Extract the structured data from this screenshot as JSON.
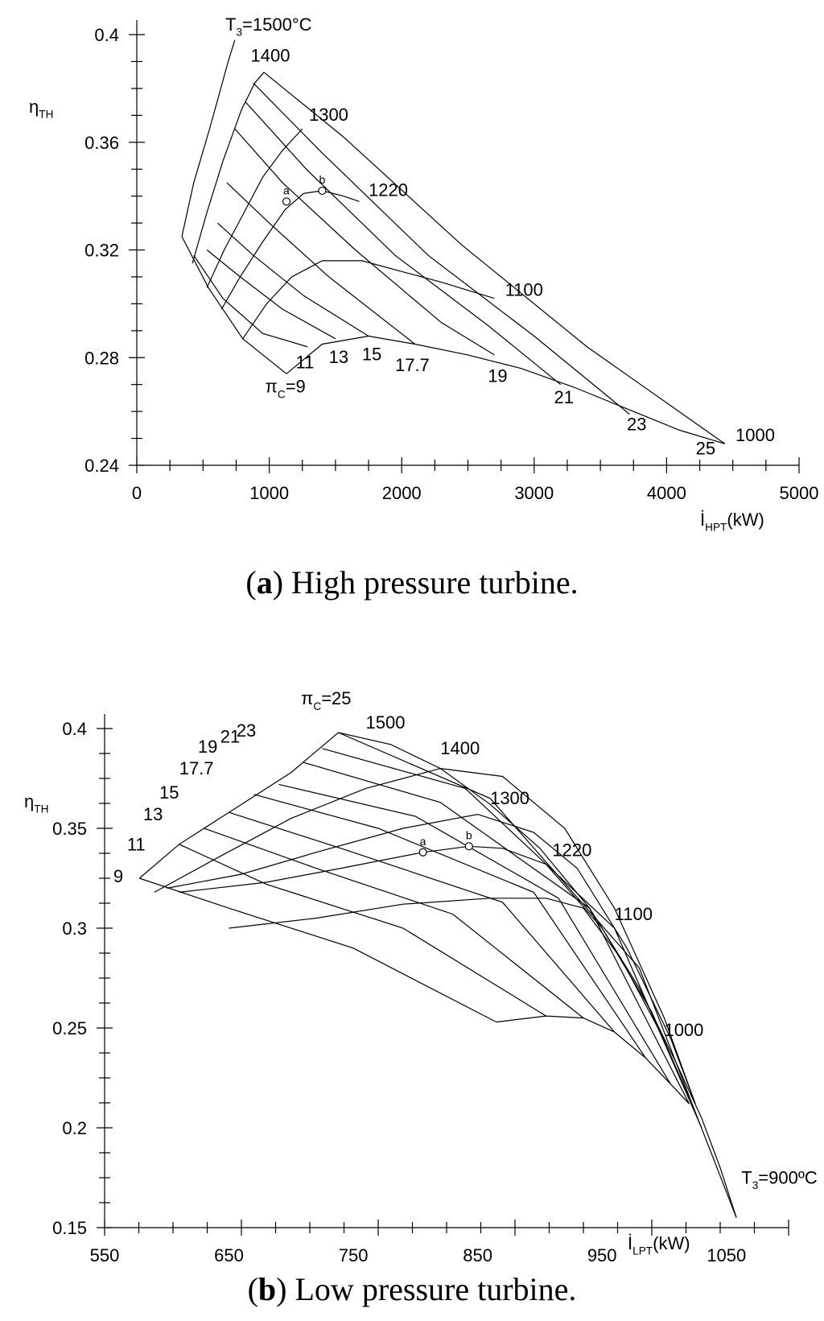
{
  "chart_data": [
    {
      "type": "line",
      "panel": "a",
      "caption_letter": "a",
      "caption_text": "High pressure turbine.",
      "ylabel": "η",
      "ylabel_sub": "TH",
      "xlabel": "İ",
      "xlabel_sub": "HPT",
      "xlabel_unit": "(kW)",
      "xlim": [
        0,
        5000
      ],
      "ylim": [
        0.24,
        0.4
      ],
      "xticks": [
        0,
        1000,
        2000,
        3000,
        4000,
        5000
      ],
      "yticks": [
        "0.24",
        "0.28",
        "0.32",
        "0.36",
        "0.4"
      ],
      "yticks_values": [
        0.24,
        0.28,
        0.32,
        0.36,
        0.4
      ],
      "top_label_prefix": "T",
      "top_label_sub": "3",
      "top_label_suffix": "=1500°C",
      "series_t3": [
        {
          "name": "1500",
          "x": [
            340,
            430,
            550,
            690,
            740
          ],
          "y": [
            0.325,
            0.345,
            0.365,
            0.39,
            0.398
          ]
        },
        {
          "name": "1400",
          "x": [
            420,
            530,
            650,
            790,
            890,
            960
          ],
          "y": [
            0.315,
            0.334,
            0.353,
            0.372,
            0.382,
            0.386
          ]
        },
        {
          "name": "1300",
          "x": [
            530,
            660,
            800,
            950,
            1100,
            1250
          ],
          "y": [
            0.306,
            0.32,
            0.333,
            0.347,
            0.357,
            0.365
          ]
        },
        {
          "name": "1220",
          "x": [
            640,
            780,
            950,
            1120,
            1260,
            1400,
            1560,
            1680
          ],
          "y": [
            0.298,
            0.31,
            0.323,
            0.335,
            0.341,
            0.342,
            0.34,
            0.338
          ]
        },
        {
          "name": "1100",
          "x": [
            800,
            980,
            1170,
            1400,
            1700,
            2000,
            2300,
            2700
          ],
          "y": [
            0.287,
            0.3,
            0.31,
            0.316,
            0.316,
            0.312,
            0.308,
            0.302
          ]
        },
        {
          "name": "1000",
          "x": [
            1130,
            1400,
            1750,
            2100,
            2500,
            2900,
            3300,
            3700,
            4100,
            4440
          ],
          "y": [
            0.274,
            0.285,
            0.288,
            0.285,
            0.281,
            0.276,
            0.269,
            0.261,
            0.253,
            0.248
          ]
        }
      ],
      "series_pi": [
        {
          "name": "9",
          "x": [
            340,
            540,
            800,
            1130
          ],
          "y": [
            0.325,
            0.306,
            0.287,
            0.274
          ]
        },
        {
          "name": "11",
          "x": [
            430,
            650,
            950,
            1290
          ],
          "y": [
            0.318,
            0.302,
            0.289,
            0.284
          ]
        },
        {
          "name": "13",
          "x": [
            530,
            780,
            1100,
            1500
          ],
          "y": [
            0.32,
            0.31,
            0.298,
            0.287
          ]
        },
        {
          "name": "15",
          "x": [
            610,
            880,
            1260,
            1750
          ],
          "y": [
            0.33,
            0.318,
            0.303,
            0.288
          ]
        },
        {
          "name": "17.7",
          "x": [
            680,
            1000,
            1450,
            2100
          ],
          "y": [
            0.345,
            0.33,
            0.31,
            0.285
          ]
        },
        {
          "name": "19",
          "x": [
            740,
            1100,
            1650,
            2300,
            2700
          ],
          "y": [
            0.365,
            0.345,
            0.32,
            0.293,
            0.281
          ]
        },
        {
          "name": "21",
          "x": [
            820,
            1280,
            1950,
            2650,
            3200
          ],
          "y": [
            0.375,
            0.35,
            0.318,
            0.292,
            0.27
          ]
        },
        {
          "name": "23",
          "x": [
            880,
            1400,
            2200,
            3000,
            3720
          ],
          "y": [
            0.382,
            0.356,
            0.318,
            0.288,
            0.259
          ]
        },
        {
          "name": "25",
          "x": [
            960,
            1560,
            2450,
            3400,
            4440
          ],
          "y": [
            0.386,
            0.362,
            0.322,
            0.284,
            0.248
          ]
        }
      ],
      "t3_labels": [
        {
          "text": "1400",
          "x": 860,
          "y": 0.39
        },
        {
          "text": "1300",
          "x": 1300,
          "y": 0.368
        },
        {
          "text": "1220",
          "x": 1750,
          "y": 0.34
        },
        {
          "text": "1100",
          "x": 2780,
          "y": 0.303
        },
        {
          "text": "1000",
          "x": 4520,
          "y": 0.249
        }
      ],
      "pi_labels": [
        {
          "text": "11",
          "x": 1200,
          "y": 0.276
        },
        {
          "text": "13",
          "x": 1450,
          "y": 0.278
        },
        {
          "text": "15",
          "x": 1700,
          "y": 0.279
        },
        {
          "text": "17.7",
          "x": 1950,
          "y": 0.275
        },
        {
          "text": "19",
          "x": 2650,
          "y": 0.271
        },
        {
          "text": "21",
          "x": 3150,
          "y": 0.263
        },
        {
          "text": "23",
          "x": 3700,
          "y": 0.253
        },
        {
          "text": "25",
          "x": 4220,
          "y": 0.244
        }
      ],
      "pi_label": {
        "prefix": "π",
        "sub": "C",
        "suffix": "=9",
        "x": 970,
        "y": 0.267
      },
      "points": [
        {
          "label": "a",
          "x": 1130,
          "y": 0.338
        },
        {
          "label": "b",
          "x": 1400,
          "y": 0.342
        }
      ]
    },
    {
      "type": "line",
      "panel": "b",
      "caption_letter": "b",
      "caption_text": "Low pressure turbine.",
      "ylabel": "η",
      "ylabel_sub": "TH",
      "xlabel": "İ",
      "xlabel_sub": "LPT",
      "xlabel_unit": "(kW)",
      "xlim": [
        550,
        1100
      ],
      "ylim": [
        0.15,
        0.4
      ],
      "xticks": [
        550,
        650,
        750,
        850,
        950,
        1050
      ],
      "yticks": [
        "0.15",
        "0.2",
        "0.25",
        "0.3",
        "0.35",
        "0.4"
      ],
      "yticks_values": [
        0.15,
        0.2,
        0.25,
        0.3,
        0.35,
        0.4
      ],
      "top_label_prefix": "π",
      "top_label_sub": "C",
      "top_label_suffix": "=25",
      "series_t3": [
        {
          "name": "1500",
          "x": [
            578,
            610,
            650,
            700,
            738,
            780,
            820,
            860,
            900,
            940,
            980,
            1010,
            1030,
            1045,
            1058
          ],
          "y": [
            0.325,
            0.342,
            0.358,
            0.378,
            0.398,
            0.392,
            0.38,
            0.362,
            0.34,
            0.31,
            0.27,
            0.232,
            0.205,
            0.18,
            0.155
          ]
        },
        {
          "name": "1400",
          "x": [
            590,
            640,
            700,
            760,
            820,
            870,
            920,
            960,
            1000,
            1025
          ],
          "y": [
            0.318,
            0.335,
            0.355,
            0.37,
            0.38,
            0.376,
            0.35,
            0.31,
            0.255,
            0.212
          ]
        },
        {
          "name": "1300",
          "x": [
            600,
            660,
            720,
            790,
            850,
            895,
            930,
            970,
            1005,
            1025
          ],
          "y": [
            0.32,
            0.327,
            0.338,
            0.35,
            0.357,
            0.348,
            0.33,
            0.29,
            0.245,
            0.212
          ]
        },
        {
          "name": "1220",
          "x": [
            610,
            680,
            740,
            806,
            843,
            870,
            905,
            950,
            990,
            1020
          ],
          "y": [
            0.318,
            0.323,
            0.33,
            0.338,
            0.341,
            0.34,
            0.332,
            0.3,
            0.258,
            0.215
          ]
        },
        {
          "name": "1100",
          "x": [
            650,
            720,
            790,
            860,
            905,
            935,
            965,
            995,
            1020
          ],
          "y": [
            0.3,
            0.305,
            0.312,
            0.315,
            0.315,
            0.31,
            0.285,
            0.25,
            0.215
          ]
        },
        {
          "name": "1000",
          "x": [
            865,
            905,
            935,
            960,
            985,
            1005,
            1020
          ],
          "y": [
            0.253,
            0.256,
            0.255,
            0.248,
            0.235,
            0.222,
            0.212
          ]
        }
      ],
      "series_pi": [
        {
          "name": "9",
          "x": [
            578,
            650,
            750,
            865
          ],
          "y": [
            0.325,
            0.31,
            0.29,
            0.253
          ]
        },
        {
          "name": "11",
          "x": [
            610,
            680,
            790,
            905
          ],
          "y": [
            0.342,
            0.322,
            0.3,
            0.256
          ]
        },
        {
          "name": "13",
          "x": [
            630,
            720,
            830,
            935
          ],
          "y": [
            0.35,
            0.33,
            0.307,
            0.255
          ]
        },
        {
          "name": "15",
          "x": [
            650,
            740,
            870,
            960
          ],
          "y": [
            0.358,
            0.34,
            0.313,
            0.248
          ]
        },
        {
          "name": "17.7",
          "x": [
            670,
            770,
            895,
            985
          ],
          "y": [
            0.367,
            0.35,
            0.318,
            0.235
          ]
        },
        {
          "name": "19",
          "x": [
            690,
            800,
            915,
            1005
          ],
          "y": [
            0.372,
            0.356,
            0.315,
            0.222
          ]
        },
        {
          "name": "21",
          "x": [
            710,
            820,
            940,
            1020
          ],
          "y": [
            0.383,
            0.363,
            0.31,
            0.212
          ]
        },
        {
          "name": "23",
          "x": [
            725,
            840,
            960,
            1030
          ],
          "y": [
            0.39,
            0.37,
            0.3,
            0.2
          ]
        },
        {
          "name": "25",
          "x": [
            738,
            860,
            980,
            1058
          ],
          "y": [
            0.398,
            0.365,
            0.28,
            0.155
          ]
        }
      ],
      "t3_labels": [
        {
          "text": "1500",
          "x": 760,
          "y": 0.4
        },
        {
          "text": "1400",
          "x": 820,
          "y": 0.387
        },
        {
          "text": "1300",
          "x": 860,
          "y": 0.362
        },
        {
          "text": "1220",
          "x": 910,
          "y": 0.336
        },
        {
          "text": "1100",
          "x": 960,
          "y": 0.304
        },
        {
          "text": "1000",
          "x": 1000,
          "y": 0.246
        }
      ],
      "bottom_label": {
        "prefix": "T",
        "sub": "3",
        "suffix": "=900ºC",
        "x": 1062,
        "y": 0.172
      },
      "pi_labels": [
        {
          "text": "9",
          "x": 557,
          "y": 0.323
        },
        {
          "text": "11",
          "x": 568,
          "y": 0.339
        },
        {
          "text": "13",
          "x": 581,
          "y": 0.354
        },
        {
          "text": "15",
          "x": 594,
          "y": 0.365
        },
        {
          "text": "17.7",
          "x": 610,
          "y": 0.377
        },
        {
          "text": "19",
          "x": 625,
          "y": 0.388
        },
        {
          "text": "21",
          "x": 643,
          "y": 0.393
        },
        {
          "text": "23",
          "x": 656,
          "y": 0.396
        }
      ],
      "points": [
        {
          "label": "a",
          "x": 806,
          "y": 0.338
        },
        {
          "label": "b",
          "x": 843,
          "y": 0.341
        }
      ]
    }
  ]
}
